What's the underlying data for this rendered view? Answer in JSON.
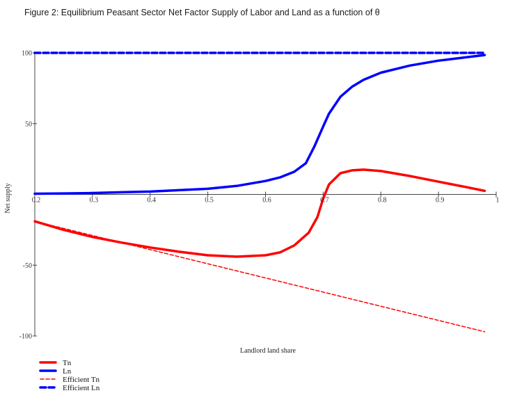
{
  "title": "Figure 2: Equilibrium Peasant Sector Net Factor Supply of Labor and Land as a function of θ",
  "chart_data": {
    "type": "line",
    "title": "Figure 2: Equilibrium Peasant Sector Net Factor Supply of Labor and Land as a function of θ",
    "xlabel": "Landlord land share",
    "ylabel": "Net supply",
    "xlim": [
      0.2,
      1.0
    ],
    "ylim": [
      -100,
      100
    ],
    "x_ticks": [
      "0.2",
      "0.3",
      "0.4",
      "0.5",
      "0.6",
      "0.7",
      "0.8",
      "0.9",
      "1"
    ],
    "y_ticks": [
      "100",
      "50",
      "-50",
      "-100"
    ],
    "legend_position": "bottom-left",
    "series": [
      {
        "name": "Tn",
        "color": "#ff0000",
        "style": "solid-thick",
        "x": [
          0.2,
          0.25,
          0.3,
          0.35,
          0.4,
          0.45,
          0.5,
          0.55,
          0.6,
          0.625,
          0.65,
          0.675,
          0.69,
          0.7,
          0.71,
          0.73,
          0.75,
          0.77,
          0.8,
          0.85,
          0.9,
          0.95,
          0.98
        ],
        "y": [
          -19,
          -25,
          -30,
          -34,
          -37.5,
          -40.5,
          -43,
          -44,
          -43,
          -41,
          -36,
          -27,
          -16,
          -3,
          7,
          15,
          17,
          17.5,
          16.5,
          13,
          9,
          5,
          2.5
        ]
      },
      {
        "name": "Ln",
        "color": "#0000ff",
        "style": "solid-thick",
        "x": [
          0.2,
          0.25,
          0.3,
          0.35,
          0.4,
          0.45,
          0.5,
          0.55,
          0.6,
          0.625,
          0.65,
          0.67,
          0.685,
          0.7,
          0.71,
          0.73,
          0.75,
          0.77,
          0.8,
          0.85,
          0.9,
          0.95,
          0.98
        ],
        "y": [
          0.5,
          0.7,
          1,
          1.5,
          2,
          3,
          4,
          6,
          9.5,
          12,
          16,
          22,
          34,
          48,
          57,
          69,
          76,
          81,
          86,
          91,
          94.5,
          97,
          98.5
        ]
      },
      {
        "name": "Efficient Tn",
        "color": "#ff0000",
        "style": "dashed-thin",
        "x": [
          0.2,
          0.98
        ],
        "y": [
          -19,
          -97
        ]
      },
      {
        "name": "Efficient Ln",
        "color": "#0000ff",
        "style": "dashed-thick",
        "x": [
          0.2,
          0.98
        ],
        "y": [
          100,
          100
        ]
      }
    ]
  }
}
